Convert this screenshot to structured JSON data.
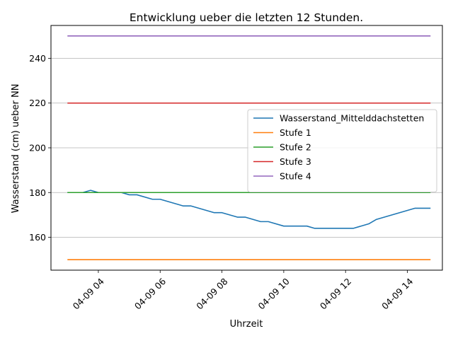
{
  "chart_data": {
    "type": "line",
    "title": "Entwicklung ueber die letzten 12 Stunden.",
    "xlabel": "Uhrzeit",
    "ylabel": "Wasserstand (cm) ueber NN",
    "x_unit": "time (date 04-09, HH:MM)",
    "xlim": [
      "04-09 02:28",
      "04-09 15:08"
    ],
    "ylim": [
      145.3,
      254.7
    ],
    "x_ticks": [
      {
        "label": "04-09 04",
        "value": "04:00"
      },
      {
        "label": "04-09 06",
        "value": "06:00"
      },
      {
        "label": "04-09 08",
        "value": "08:00"
      },
      {
        "label": "04-09 10",
        "value": "10:00"
      },
      {
        "label": "04-09 12",
        "value": "12:00"
      },
      {
        "label": "04-09 14",
        "value": "14:00"
      }
    ],
    "y_ticks": [
      160,
      180,
      200,
      220,
      240
    ],
    "x_tick_rotation": 45,
    "grid": "horizontal major y gridlines",
    "legend": {
      "placement": "center-right"
    },
    "series": [
      {
        "name": "Wasserstand_Mittelddachstetten",
        "color": "#1f77b4",
        "x": [
          "03:00",
          "03:30",
          "03:45",
          "04:00",
          "04:15",
          "04:45",
          "05:00",
          "05:15",
          "05:45",
          "06:00",
          "06:45",
          "07:00",
          "07:45",
          "08:00",
          "08:30",
          "08:45",
          "09:15",
          "09:30",
          "10:00",
          "10:45",
          "11:00",
          "12:15",
          "12:45",
          "13:00",
          "14:15",
          "14:45"
        ],
        "y": [
          180,
          180,
          181,
          180,
          180,
          180,
          179,
          179,
          177,
          177,
          174,
          174,
          171,
          171,
          169,
          169,
          167,
          167,
          165,
          165,
          164,
          164,
          166,
          168,
          173,
          173
        ]
      },
      {
        "name": "Stufe 1",
        "color": "#ff7f0e",
        "x": [
          "03:00",
          "14:45"
        ],
        "y": [
          150,
          150
        ]
      },
      {
        "name": "Stufe 2",
        "color": "#2ca02c",
        "x": [
          "03:00",
          "14:45"
        ],
        "y": [
          180,
          180
        ]
      },
      {
        "name": "Stufe 3",
        "color": "#d62728",
        "x": [
          "03:00",
          "14:45"
        ],
        "y": [
          220,
          220
        ]
      },
      {
        "name": "Stufe 4",
        "color": "#9467bd",
        "x": [
          "03:00",
          "14:45"
        ],
        "y": [
          250,
          250
        ]
      }
    ]
  }
}
